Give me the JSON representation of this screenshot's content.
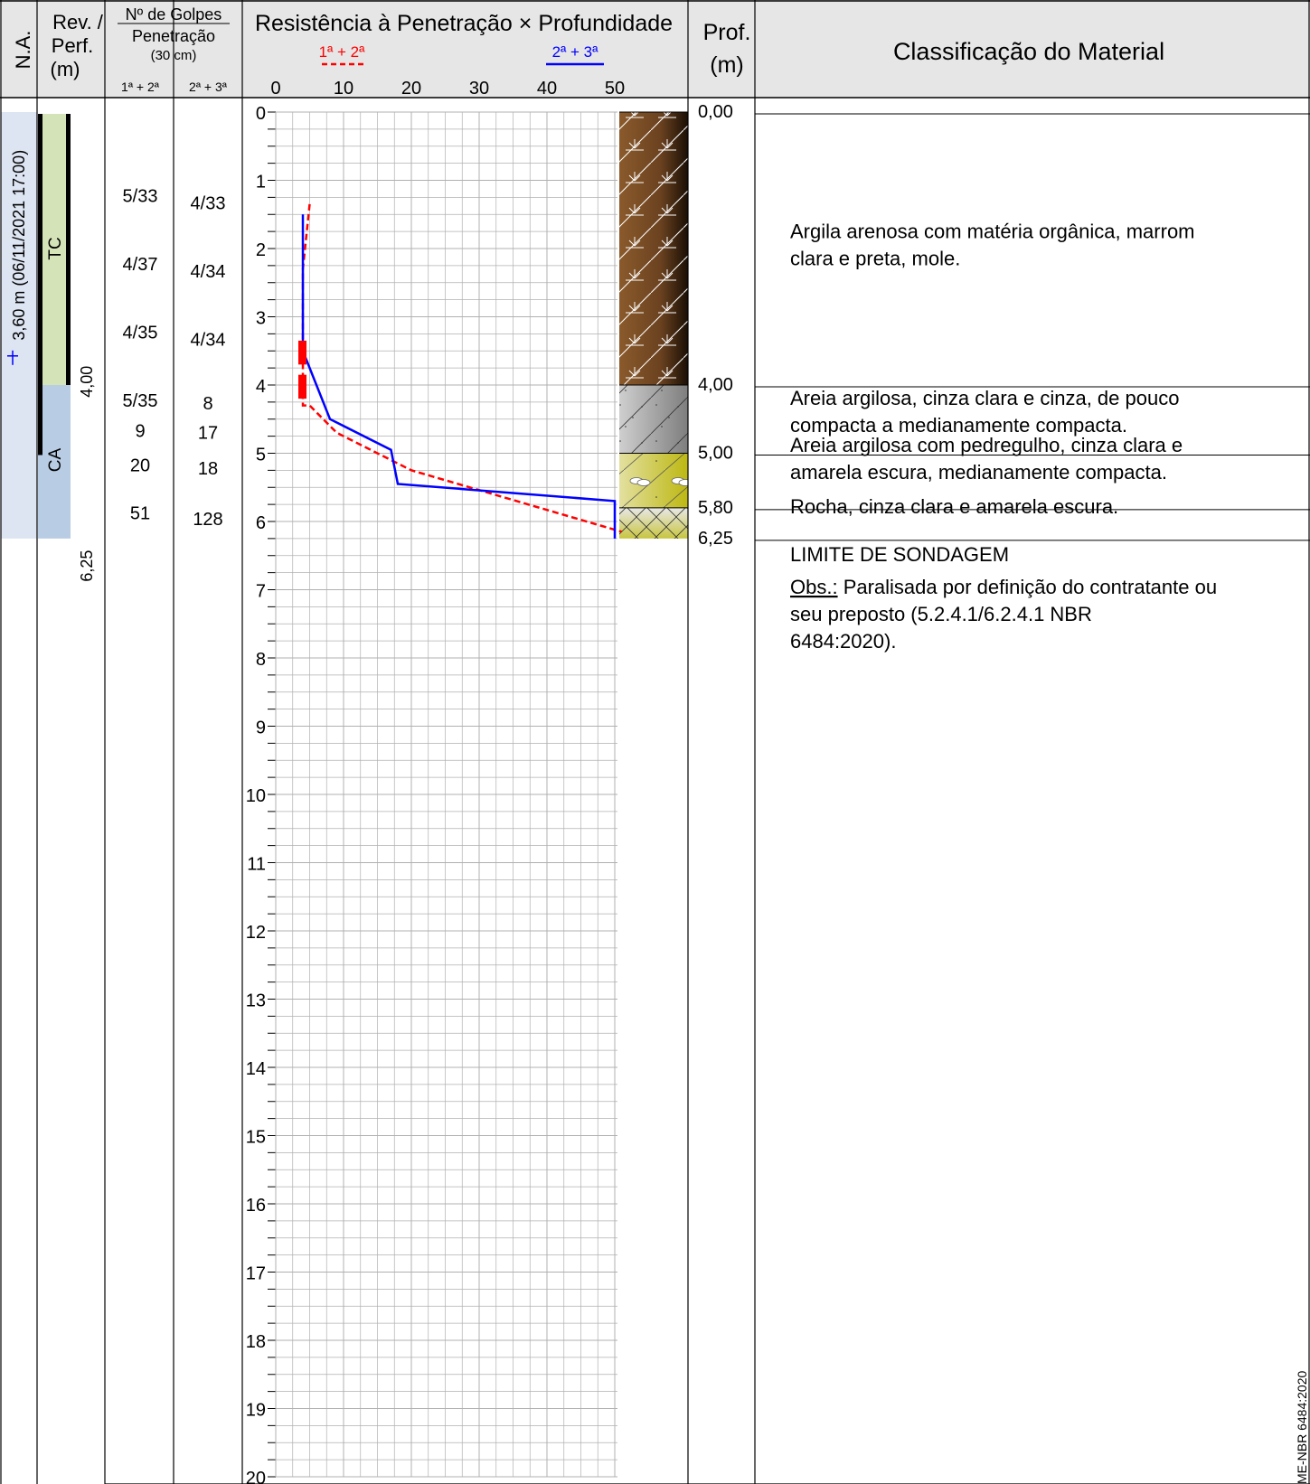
{
  "header": {
    "na": "N.A.",
    "rev_line1": "Rev. /",
    "rev_line2": "Perf.",
    "rev_line3": "(m)",
    "golpes_title": "Nº de Golpes",
    "golpes_sub": "Penetração",
    "golpes_unit": "(30 cm)",
    "golpes_col1": "1ª + 2ª",
    "golpes_col2": "2ª + 3ª",
    "chart_title": "Resistência à Penetração × Profundidade",
    "legend_red": "1ª + 2ª",
    "legend_blue": "2ª + 3ª",
    "prof_line1": "Prof.",
    "prof_line2": "(m)",
    "classification": "Classificação do Material"
  },
  "water_level": {
    "label": "3,60 m (06/11/2021 17:00)",
    "depth": 3.6
  },
  "casing": {
    "tc_label": "TC",
    "ca_label": "CA",
    "tc_depth_end": 4.0,
    "ca_depth_end": 6.25,
    "depth_label_1": "4,00",
    "depth_label_2": "6,25"
  },
  "blows": [
    {
      "depth": 1.5,
      "c1": "5/33",
      "c2": "4/33"
    },
    {
      "depth": 2.5,
      "c1": "4/37",
      "c2": "4/34"
    },
    {
      "depth": 3.5,
      "c1": "4/35",
      "c2": "4/34"
    },
    {
      "depth": 4.5,
      "c1": "5/35",
      "c2": "8"
    },
    {
      "depth": 4.95,
      "c1": "9",
      "c2": "17"
    },
    {
      "depth": 5.45,
      "c1": "20",
      "c2": "18"
    },
    {
      "depth": 6.15,
      "c1": "51",
      "c2": "128"
    }
  ],
  "layers": [
    {
      "top": 0.0,
      "bottom": 4.0,
      "top_label": "0,00",
      "pattern": "organic-clay",
      "color": "#8a5a2b",
      "description": "Argila arenosa com matéria orgânica, marrom clara e preta, mole."
    },
    {
      "top": 4.0,
      "bottom": 5.0,
      "top_label": "4,00",
      "pattern": "clayey-sand",
      "color": "#a6a6a6",
      "description": "Areia argilosa, cinza clara e cinza, de pouco compacta a medianamente compacta."
    },
    {
      "top": 5.0,
      "bottom": 5.8,
      "top_label": "5,00",
      "pattern": "gravelly-sand",
      "color": "#c8c41e",
      "description": "Areia argilosa com pedregulho, cinza clara e amarela escura, medianamente compacta."
    },
    {
      "top": 5.8,
      "bottom": 6.25,
      "top_label": "5,80",
      "pattern": "rock",
      "color": "#d6d8a0",
      "description": "Rocha, cinza clara e amarela escura."
    }
  ],
  "end_depth_label": "6,25",
  "limit_text": "LIMITE DE SONDAGEM",
  "obs_label": "Obs.:",
  "obs_text": " Paralisada por definição do contratante ou seu preposto (5.2.4.1/6.2.4.1 NBR 6484:2020).",
  "side_note": "ME-NBR 6484:2020",
  "colors": {
    "red_series": "#ff0000",
    "blue_series": "#0000ff",
    "grid": "#a0a0a0",
    "header_bg": "#e6e6e6"
  },
  "chart_data": {
    "type": "line",
    "title": "Resistência à Penetração × Profundidade",
    "x_ticks": [
      0,
      10,
      20,
      30,
      40,
      50
    ],
    "y_ticks": [
      0,
      1,
      2,
      3,
      4,
      5,
      6,
      7,
      8,
      9,
      10,
      11,
      12,
      13,
      14,
      15,
      16,
      17,
      18,
      19,
      20
    ],
    "xlim": [
      0,
      50
    ],
    "ylim": [
      0,
      20
    ],
    "series": [
      {
        "name": "1ª + 2ª",
        "style": "dashed",
        "points": [
          [
            5,
            1.35
          ],
          [
            4,
            2.3
          ],
          [
            4,
            3.4
          ],
          [
            4,
            4.3
          ],
          [
            5,
            4.3
          ],
          [
            9,
            4.7
          ],
          [
            20,
            5.25
          ],
          [
            51,
            6.15
          ]
        ]
      },
      {
        "name": "2ª + 3ª",
        "style": "solid",
        "points": [
          [
            4,
            1.5
          ],
          [
            4,
            2.5
          ],
          [
            4,
            3.5
          ],
          [
            8,
            4.5
          ],
          [
            17,
            4.95
          ],
          [
            18,
            5.45
          ],
          [
            50,
            5.7
          ],
          [
            50,
            6.25
          ]
        ]
      }
    ],
    "red_blocks": [
      [
        3.35,
        3.7
      ],
      [
        3.85,
        4.2
      ]
    ]
  }
}
